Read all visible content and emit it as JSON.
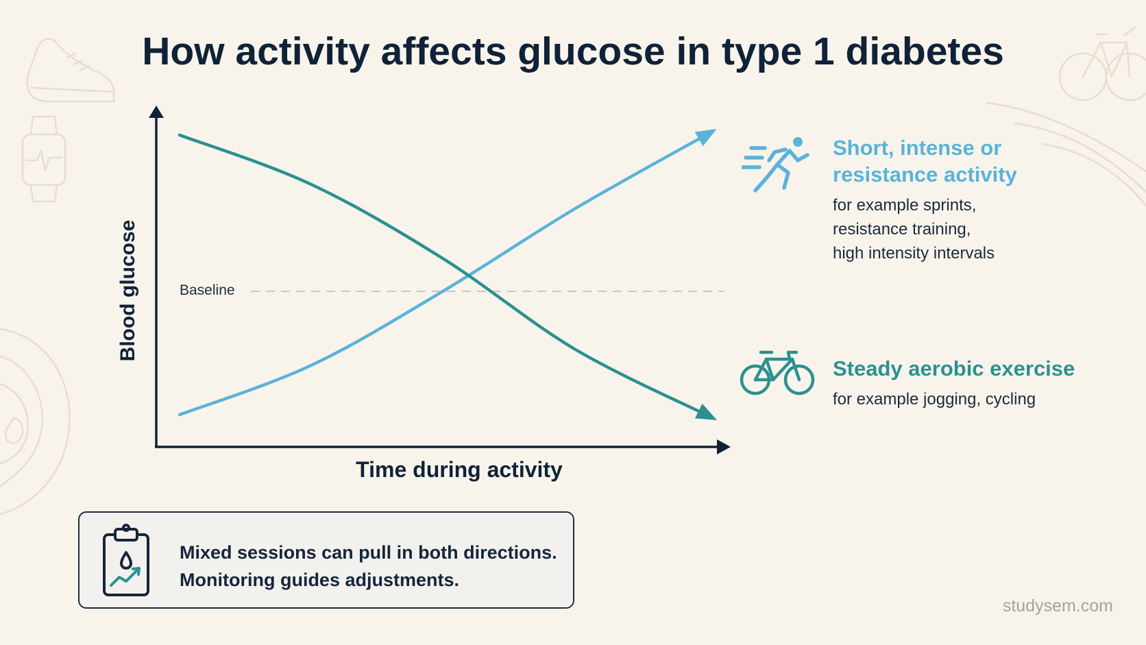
{
  "title": "How activity affects glucose in type 1 diabetes",
  "chart": {
    "y_axis_label": "Blood glucose",
    "x_axis_label": "Time during activity",
    "baseline_label": "Baseline",
    "colors": {
      "intense": "#5ab3d9",
      "aerobic": "#2b9190",
      "axis": "#0f2238",
      "baseline": "#b8b8b8"
    }
  },
  "chart_data": {
    "type": "line",
    "xlabel": "Time during activity",
    "ylabel": "Blood glucose",
    "reference_line": "Baseline",
    "series": [
      {
        "name": "Short, intense or resistance activity",
        "trend": "rising",
        "values": [
          -0.75,
          -0.45,
          0.0,
          0.5,
          0.95
        ]
      },
      {
        "name": "Steady aerobic exercise",
        "trend": "falling",
        "values": [
          0.95,
          0.65,
          0.2,
          -0.35,
          -0.75
        ]
      }
    ]
  },
  "legend": {
    "intense": {
      "icon": "runner-icon",
      "title_line1": "Short, intense or",
      "title_line2": "resistance activity",
      "desc_line1": "for example sprints,",
      "desc_line2": "resistance training,",
      "desc_line3": "high intensity intervals"
    },
    "aerobic": {
      "icon": "bicycle-icon",
      "title": "Steady aerobic exercise",
      "desc": "for example jogging, cycling"
    }
  },
  "note": {
    "icon": "clipboard-glucose-icon",
    "line1": "Mixed sessions can pull in both directions.",
    "line2": "Monitoring guides adjustments."
  },
  "watermark": "studysem.com"
}
